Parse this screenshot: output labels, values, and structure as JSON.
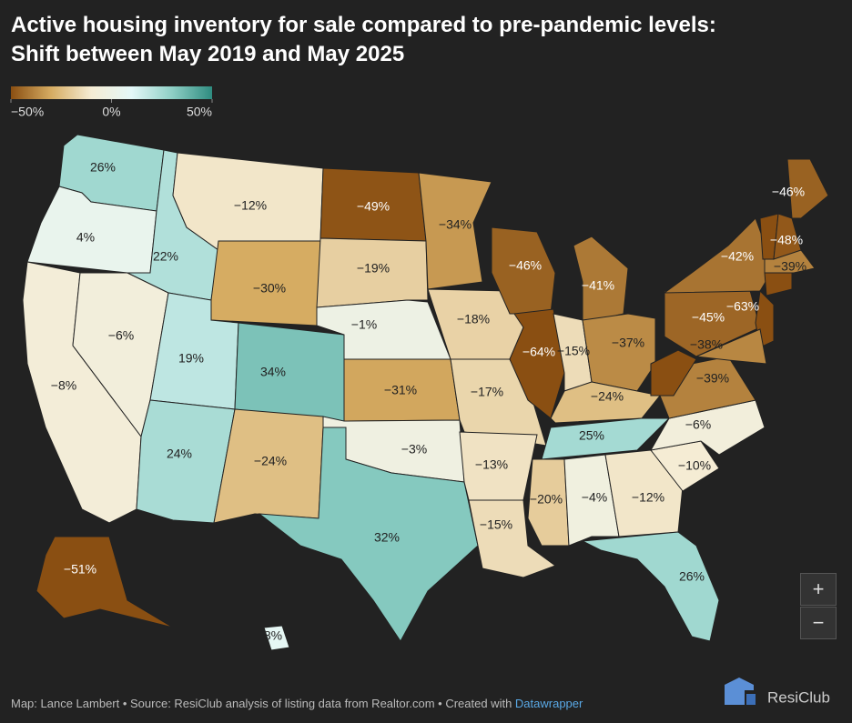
{
  "chart_data": {
    "type": "choropleth",
    "title": "Active housing inventory for sale compared to pre-pandemic levels:",
    "subtitle": "Shift between May 2019 and May 2025",
    "clim": [
      -50,
      50
    ],
    "cticks": [
      {
        "value": -50,
        "label": "−50%"
      },
      {
        "value": 0,
        "label": "0%"
      },
      {
        "value": 50,
        "label": "50%"
      }
    ],
    "colorscale": [
      "#8a4f12",
      "#d6ac62",
      "#f5ecd4",
      "#e4f8f8",
      "#8fd0c6",
      "#2f8c80"
    ],
    "values": [
      26,
      4,
      -8,
      -6,
      22,
      -12,
      -30,
      19,
      34,
      24,
      -24,
      -49,
      -19,
      -1,
      -31,
      -3,
      32,
      -34,
      -18,
      -17,
      -13,
      -15,
      -46,
      -64,
      -41,
      -15,
      -37,
      -24,
      25,
      -20,
      -4,
      -12,
      26,
      -10,
      -6,
      -39,
      -55,
      -45,
      -42,
      -63,
      -38,
      -55,
      -39,
      -50,
      -48,
      -46,
      -51,
      8
    ],
    "value_labels": [
      "26%",
      "4%",
      "−8%",
      "−6%",
      "22%",
      "−12%",
      "−30%",
      "19%",
      "34%",
      "24%",
      "−24%",
      "−49%",
      "−19%",
      "−1%",
      "−31%",
      "−3%",
      "32%",
      "−34%",
      "−18%",
      "−17%",
      "−13%",
      "−15%",
      "−46%",
      "−64%",
      "−41%",
      "−15%",
      "−37%",
      "−24%",
      "25%",
      "−20%",
      "−4%",
      "−12%",
      "26%",
      "−10%",
      "−6%",
      "−39%",
      null,
      "−45%",
      "−42%",
      "−63%",
      "−38%",
      null,
      "−39%",
      null,
      "−48%",
      "−46%",
      "−51%",
      "8%"
    ],
    "footer": "Map: Lance Lambert • Source: ResiClub analysis of listing data from Realtor.com • Created with ",
    "footer_link": "Datawrapper",
    "logo": "ResiClub",
    "zoom_in": "+",
    "zoom_out": "−"
  }
}
